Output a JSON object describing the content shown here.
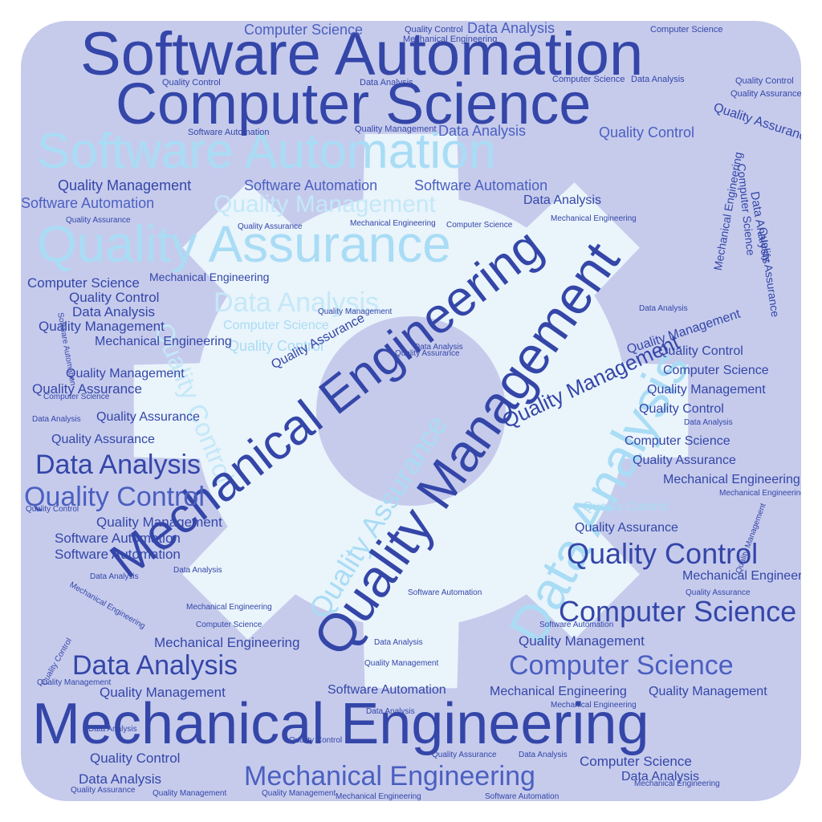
{
  "colors": {
    "frame": "#ffffff",
    "tile": "#c6cbec",
    "gear": "#eaf4fb",
    "word_dark": "#3446a8",
    "word_mid": "#4b5fc0",
    "word_light": "#a9dcf5",
    "word_pale": "#c4e8f8"
  },
  "icons": {
    "background_shape": "gear-icon"
  },
  "words": {
    "w01": "Software Automation",
    "w02": "Computer Science",
    "w03": "Software Automation",
    "w04": "Quality Assurance",
    "w05": "Mechanical Engineering",
    "w06": "Quality Management",
    "w07": "Data Analysis",
    "w08": "Mechanical Engineering",
    "w09": "Quality Control",
    "w10": "Computer Science",
    "w11": "Quality Control",
    "w12": "Data Analysis",
    "w13": "Quality Assurance",
    "w14": "Computer Science",
    "w15": "Data Analysis",
    "w16": "Quality Management",
    "w17": "Quality Management",
    "w18": "Mechanical Engineering",
    "w19": "Software Automation",
    "w20": "Software Automation",
    "w21": "Data Analysis",
    "w22": "Quality Management",
    "w23": "Data Analysis",
    "w24": "Quality Control",
    "w25": "Computer Science",
    "w26": "Quality Control",
    "w27": "Quality Control",
    "w28": "Computer Science",
    "w29": "Data Analysis",
    "w30": "Quality Control",
    "w31": "Software Automation",
    "w32": "Computer Science",
    "w33": "Quality Control",
    "w34": "Data Analysis",
    "w35": "Quality Management",
    "w36": "Mechanical Engineering",
    "w37": "Quality Management",
    "w38": "Quality Assurance",
    "w39": "Quality Assurance",
    "w40": "Quality Assurance",
    "w41": "Quality Management",
    "w42": "Software Automation",
    "w43": "Software Automation",
    "w44": "Quality Management",
    "w45": "Mechanical Engineering",
    "w46": "Quality Control",
    "w47": "Data Analysis",
    "w48": "Quality Control",
    "w49": "Computer Science",
    "w50": "Quality Management",
    "w51": "Quality Control",
    "w52": "Computer Science",
    "w53": "Quality Assurance",
    "w54": "Mechanical Engineering",
    "w55": "Quality Assurance",
    "w56": "Mechanical Engineering",
    "w57": "Quality Management",
    "w58": "Mechanical Engineering",
    "w59": "Quality Management",
    "w60": "Computer Science",
    "w61": "Data Analysis",
    "w62": "Software Automation",
    "w63": "Data Analysis",
    "w64": "Quality Assurance",
    "w65": "Quality Assurance",
    "w66": "Data Analysis",
    "w67": "Quality Management",
    "w68": "Mechanical Engineering",
    "w69": "Quality Assurance",
    "w70": "Computer Science",
    "w71": "Mechanical Engineering",
    "w72": "Data Analysis",
    "w73": "Quality Management",
    "w74": "Software Automation",
    "w75": "Data Analysis",
    "w76": "Computer Science",
    "w77": "Quality Control",
    "w78": "Quality Control",
    "w79": "Mechanical Engineering",
    "w80": "Computer Science",
    "w81": "Quality Assurance",
    "w82": "Quality Control",
    "w83": "Quality Assurance",
    "w84": "Quality Assurance",
    "w85": "Mechanical Engineering",
    "w86": "Computer Science",
    "w87": "Mechanical Engineering",
    "w88": "Data Analysis",
    "w89": "Data Analysis",
    "w90": "Quality Control",
    "w91": "Quality Management",
    "w92": "Data Analysis",
    "w93": "Quality Control",
    "w94": "Quality Management",
    "w95": "Data Analysis",
    "w96": "Software Automation",
    "w97": "Mechanical Engineering",
    "w98": "Data Analysis",
    "w99": "Quality Assurance",
    "w100": "Data Analysis",
    "w101": "Quality Management",
    "w102": "Quality Assurance",
    "w103": "Software Automation",
    "w104": "Quality Management",
    "w105": "Mechanical Engineering",
    "w106": "Computer Science",
    "w107": "Data Analysis",
    "w108": "Quality Assurance",
    "w109": "Quality Management",
    "w110": "Mechanical Engineering",
    "w111": "Data Analysis",
    "w112": "Software Automation",
    "w113": "Computer Science",
    "w114": "Quality Control",
    "w115": "Data Analysis",
    "w116": "Mechanical Engineering",
    "w117": "Quality Management",
    "w118": "Data Analysis",
    "w119": "Quality Assurance",
    "w120": "Mechanical Engineering",
    "w121": "Software Automation",
    "w122": "Mechanical Engineering"
  }
}
